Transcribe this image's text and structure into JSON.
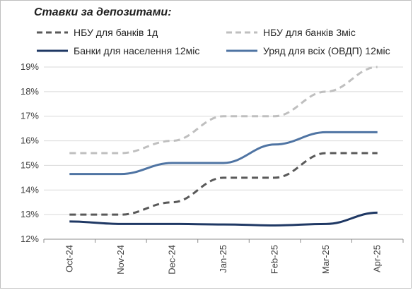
{
  "chart_data": {
    "type": "line",
    "title": "Ставки за депозитами:",
    "categories": [
      "Oct-24",
      "Nov-24",
      "Dec-24",
      "Jan-25",
      "Feb-25",
      "Mar-25",
      "Apr-25"
    ],
    "ylim": [
      12,
      19
    ],
    "yticks": [
      "12%",
      "13%",
      "14%",
      "15%",
      "16%",
      "17%",
      "18%",
      "19%"
    ],
    "grid": true,
    "legend_placement": "top",
    "series": [
      {
        "name": "НБУ для банків 1д",
        "values": [
          13.0,
          13.0,
          13.5,
          14.5,
          14.5,
          15.5,
          15.5
        ],
        "color": "#595959",
        "dash": true
      },
      {
        "name": "НБУ для банків 3міс",
        "values": [
          15.5,
          15.5,
          16.0,
          17.0,
          17.0,
          18.0,
          19.0
        ],
        "color": "#bfbfbf",
        "dash": true
      },
      {
        "name": "Банки для населення 12міс",
        "values": [
          12.72,
          12.62,
          12.62,
          12.6,
          12.56,
          12.62,
          13.08
        ],
        "color": "#1f3864",
        "dash": false
      },
      {
        "name": "Уряд для всіх (ОВДП) 12міс",
        "values": [
          14.65,
          14.65,
          15.1,
          15.1,
          15.85,
          16.35,
          16.35
        ],
        "color": "#4f74a3",
        "dash": false
      }
    ]
  }
}
